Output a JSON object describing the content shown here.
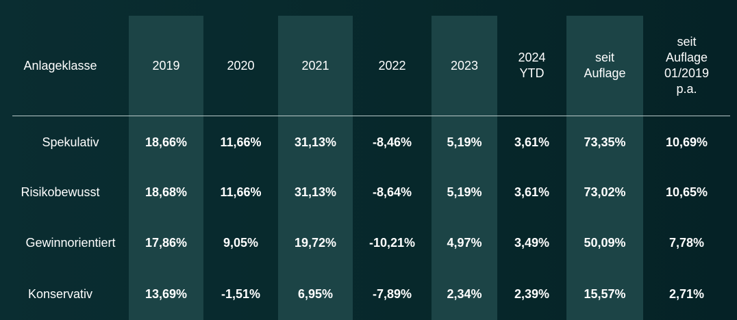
{
  "colors": {
    "background": "#07282b",
    "highlight_column": "#1c4446",
    "divider": "#b9c9c9",
    "text": "#ffffff"
  },
  "table": {
    "columns": [
      "Anlageklasse",
      "2019",
      "2020",
      "2021",
      "2022",
      "2023",
      "2024\nYTD",
      "seit\nAuflage",
      "seit\nAuflage\n01/2019\np.a."
    ],
    "highlighted_columns": [
      "2019",
      "2021",
      "2023",
      "seit Auflage"
    ],
    "rows": [
      {
        "label": "Spekulativ",
        "values": [
          "18,66%",
          "11,66%",
          "31,13%",
          "-8,46%",
          "5,19%",
          "3,61%",
          "73,35%",
          "10,69%"
        ]
      },
      {
        "label": "Risikobewusst",
        "values": [
          "18,68%",
          "11,66%",
          "31,13%",
          "-8,64%",
          "5,19%",
          "3,61%",
          "73,02%",
          "10,65%"
        ]
      },
      {
        "label": "Gewinnorientiert",
        "values": [
          "17,86%",
          "9,05%",
          "19,72%",
          "-10,21%",
          "4,97%",
          "3,49%",
          "50,09%",
          "7,78%"
        ]
      },
      {
        "label": "Konservativ",
        "values": [
          "13,69%",
          "-1,51%",
          "6,95%",
          "-7,89%",
          "2,34%",
          "2,39%",
          "15,57%",
          "2,71%"
        ]
      }
    ]
  }
}
